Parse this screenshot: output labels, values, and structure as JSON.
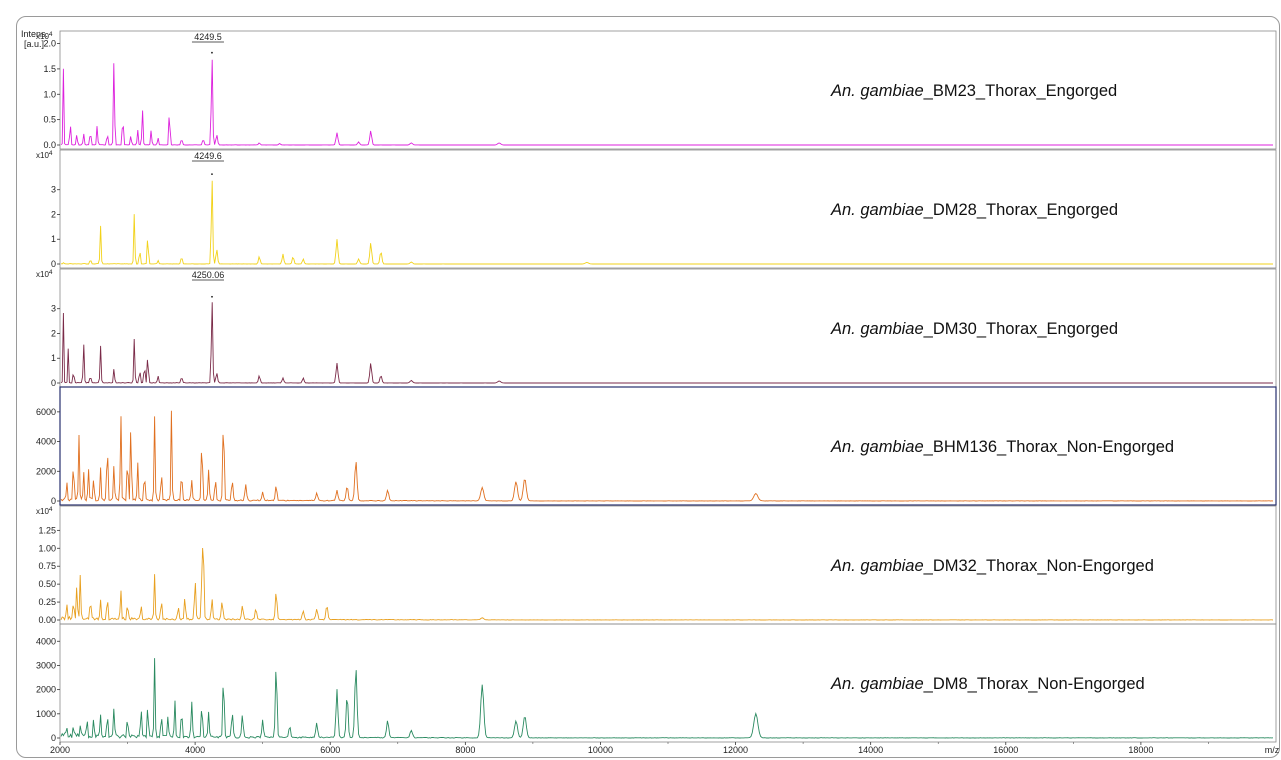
{
  "chart_data": {
    "type": "line",
    "y_axis_title": [
      "Intens.",
      "[a.u.]"
    ],
    "x_axis": {
      "unit": "m/z",
      "range": [
        2000,
        20000
      ],
      "ticks": [
        "2000",
        "4000",
        "6000",
        "8000",
        "10000",
        "12000",
        "14000",
        "16000",
        "18000"
      ]
    },
    "panels": [
      {
        "label_italic": "An. gambiae",
        "label_rest": "_BM23_Thorax_Engorged",
        "color": "#dd22dd",
        "multiplier": "x10",
        "multiplier_exp": "4",
        "ylim": [
          0,
          2.05
        ],
        "y_ticks": [
          "0.0",
          "0.5",
          "1.0",
          "1.5",
          "2.0"
        ],
        "peak_label": "4249.5",
        "peak_mz": 4249.5,
        "noise": 0.01,
        "peaks": [
          [
            2050,
            1.5,
            6
          ],
          [
            2150,
            0.7,
            6
          ],
          [
            2250,
            0.22,
            8
          ],
          [
            2350,
            0.22,
            8
          ],
          [
            2450,
            0.3,
            8
          ],
          [
            2550,
            0.38,
            8
          ],
          [
            2700,
            0.25,
            8
          ],
          [
            2800,
            1.78,
            8
          ],
          [
            2930,
            0.62,
            8
          ],
          [
            3050,
            0.2,
            8
          ],
          [
            3150,
            0.3,
            8
          ],
          [
            3220,
            0.72,
            8
          ],
          [
            3350,
            0.3,
            8
          ],
          [
            3450,
            0.15,
            8
          ],
          [
            3620,
            0.75,
            8
          ],
          [
            3800,
            0.12,
            10
          ],
          [
            4120,
            0.12,
            10
          ],
          [
            4249.5,
            1.78,
            10
          ],
          [
            4320,
            0.2,
            12
          ],
          [
            4950,
            0.04,
            12
          ],
          [
            5250,
            0.03,
            12
          ],
          [
            6100,
            0.24,
            14
          ],
          [
            6420,
            0.06,
            14
          ],
          [
            6600,
            0.28,
            14
          ],
          [
            7200,
            0.04,
            18
          ],
          [
            8500,
            0.04,
            22
          ]
        ]
      },
      {
        "label_italic": "An. gambiae",
        "label_rest": "_DM28_Thorax_Engorged",
        "color": "#f2d21a",
        "multiplier": "x10",
        "multiplier_exp": "4",
        "ylim": [
          0,
          4.2
        ],
        "y_ticks": [
          "0",
          "1",
          "2",
          "3"
        ],
        "peak_label": "4249.6",
        "peak_mz": 4249.6,
        "noise": 0.02,
        "peaks": [
          [
            2050,
            0.05,
            6
          ],
          [
            2450,
            0.2,
            8
          ],
          [
            2600,
            1.55,
            8
          ],
          [
            3100,
            2.05,
            8
          ],
          [
            3180,
            0.65,
            8
          ],
          [
            3300,
            1.28,
            8
          ],
          [
            3450,
            0.15,
            8
          ],
          [
            3800,
            0.3,
            10
          ],
          [
            4249.6,
            3.55,
            10
          ],
          [
            4320,
            0.6,
            12
          ],
          [
            4950,
            0.3,
            12
          ],
          [
            5300,
            0.4,
            12
          ],
          [
            5450,
            0.3,
            12
          ],
          [
            5600,
            0.2,
            12
          ],
          [
            6100,
            1.0,
            14
          ],
          [
            6420,
            0.2,
            14
          ],
          [
            6600,
            0.85,
            14
          ],
          [
            6750,
            0.5,
            14
          ],
          [
            7200,
            0.08,
            18
          ],
          [
            9800,
            0.06,
            25
          ]
        ]
      },
      {
        "label_italic": "An. gambiae",
        "label_rest": "_DM30_Thorax_Engorged",
        "color": "#7a2a48",
        "multiplier": "x10",
        "multiplier_exp": "4",
        "ylim": [
          0,
          4.2
        ],
        "y_ticks": [
          "0",
          "1",
          "2",
          "3"
        ],
        "peak_label": "4250.06",
        "peak_mz": 4250.06,
        "noise": 0.03,
        "peaks": [
          [
            2050,
            2.8,
            6
          ],
          [
            2120,
            1.4,
            6
          ],
          [
            2200,
            0.5,
            8
          ],
          [
            2350,
            1.6,
            8
          ],
          [
            2450,
            0.3,
            8
          ],
          [
            2600,
            1.5,
            8
          ],
          [
            2800,
            0.6,
            8
          ],
          [
            3100,
            1.8,
            8
          ],
          [
            3180,
            0.6,
            8
          ],
          [
            3250,
            0.8,
            8
          ],
          [
            3300,
            1.25,
            8
          ],
          [
            3450,
            0.3,
            8
          ],
          [
            3800,
            0.25,
            10
          ],
          [
            4250.06,
            3.4,
            10
          ],
          [
            4320,
            0.4,
            12
          ],
          [
            4950,
            0.3,
            12
          ],
          [
            5300,
            0.2,
            12
          ],
          [
            5600,
            0.2,
            12
          ],
          [
            6100,
            0.8,
            14
          ],
          [
            6600,
            0.8,
            14
          ],
          [
            6750,
            0.3,
            14
          ],
          [
            7200,
            0.1,
            18
          ],
          [
            8500,
            0.08,
            22
          ]
        ]
      },
      {
        "label_italic": "An. gambiae",
        "label_rest": "_BHM136_Thorax_Non-Engorged",
        "color": "#e07020",
        "multiplier": "",
        "multiplier_exp": "",
        "ylim": [
          0,
          7000
        ],
        "y_ticks": [
          "0",
          "2000",
          "4000",
          "6000"
        ],
        "peak_label": "",
        "peak_mz": null,
        "noise": 250,
        "peaks": [
          [
            2100,
            1200,
            8
          ],
          [
            2200,
            2800,
            8
          ],
          [
            2280,
            4400,
            8
          ],
          [
            2350,
            1900,
            8
          ],
          [
            2420,
            2100,
            8
          ],
          [
            2500,
            1600,
            8
          ],
          [
            2600,
            2200,
            8
          ],
          [
            2700,
            4500,
            8
          ],
          [
            2800,
            2400,
            8
          ],
          [
            2900,
            6000,
            8
          ],
          [
            3000,
            3200,
            8
          ],
          [
            3050,
            5500,
            8
          ],
          [
            3150,
            2500,
            8
          ],
          [
            3250,
            2000,
            8
          ],
          [
            3400,
            5600,
            8
          ],
          [
            3500,
            2200,
            8
          ],
          [
            3650,
            6000,
            8
          ],
          [
            3800,
            1800,
            10
          ],
          [
            3950,
            1300,
            10
          ],
          [
            4100,
            4000,
            10
          ],
          [
            4200,
            2000,
            10
          ],
          [
            4300,
            1500,
            10
          ],
          [
            4420,
            5700,
            10
          ],
          [
            4550,
            1300,
            12
          ],
          [
            4750,
            1100,
            12
          ],
          [
            5000,
            600,
            12
          ],
          [
            5200,
            1000,
            12
          ],
          [
            5800,
            500,
            14
          ],
          [
            6100,
            700,
            14
          ],
          [
            6250,
            1000,
            14
          ],
          [
            6380,
            2700,
            16
          ],
          [
            6850,
            700,
            16
          ],
          [
            8250,
            900,
            22
          ],
          [
            8750,
            1300,
            22
          ],
          [
            8880,
            1500,
            22
          ],
          [
            12300,
            500,
            30
          ]
        ]
      },
      {
        "label_italic": "An. gambiae",
        "label_rest": "_DM32_Thorax_Non-Engorged",
        "color": "#e8a020",
        "multiplier": "x10",
        "multiplier_exp": "4",
        "ylim": [
          0,
          1.45
        ],
        "y_ticks": [
          "0.00",
          "0.25",
          "0.50",
          "0.75",
          "1.00",
          "1.25"
        ],
        "peak_label": "",
        "peak_mz": null,
        "noise": 0.05,
        "peaks": [
          [
            2100,
            0.2,
            8
          ],
          [
            2200,
            0.3,
            8
          ],
          [
            2250,
            0.5,
            8
          ],
          [
            2300,
            0.6,
            8
          ],
          [
            2450,
            0.3,
            8
          ],
          [
            2600,
            0.25,
            8
          ],
          [
            2700,
            0.35,
            8
          ],
          [
            2900,
            0.42,
            8
          ],
          [
            3000,
            0.25,
            8
          ],
          [
            3200,
            0.2,
            8
          ],
          [
            3400,
            0.62,
            8
          ],
          [
            3500,
            0.3,
            8
          ],
          [
            3750,
            0.2,
            8
          ],
          [
            3850,
            0.35,
            8
          ],
          [
            4000,
            0.55,
            10
          ],
          [
            4100,
            0.5,
            10
          ],
          [
            4120,
            1.08,
            10
          ],
          [
            4250,
            0.3,
            10
          ],
          [
            4400,
            0.25,
            12
          ],
          [
            4700,
            0.2,
            12
          ],
          [
            4900,
            0.15,
            12
          ],
          [
            5200,
            0.4,
            12
          ],
          [
            5600,
            0.12,
            14
          ],
          [
            5800,
            0.15,
            14
          ],
          [
            5950,
            0.2,
            14
          ],
          [
            8250,
            0.03,
            22
          ]
        ]
      },
      {
        "label_italic": "An. gambiae",
        "label_rest": "_DM8_Thorax_Non-Engorged",
        "color": "#2a8a60",
        "multiplier": "",
        "multiplier_exp": "",
        "ylim": [
          0,
          4300
        ],
        "y_ticks": [
          "0",
          "1000",
          "2000",
          "3000",
          "4000"
        ],
        "peak_label": "",
        "peak_mz": null,
        "noise": 200,
        "peaks": [
          [
            2100,
            300,
            8
          ],
          [
            2200,
            400,
            8
          ],
          [
            2300,
            500,
            8
          ],
          [
            2400,
            700,
            8
          ],
          [
            2500,
            800,
            8
          ],
          [
            2600,
            900,
            8
          ],
          [
            2700,
            1000,
            8
          ],
          [
            2800,
            1200,
            8
          ],
          [
            3000,
            900,
            8
          ],
          [
            3200,
            1300,
            8
          ],
          [
            3300,
            1500,
            8
          ],
          [
            3400,
            3300,
            8
          ],
          [
            3500,
            1100,
            8
          ],
          [
            3600,
            900,
            8
          ],
          [
            3700,
            1500,
            8
          ],
          [
            3800,
            1300,
            8
          ],
          [
            3950,
            1500,
            10
          ],
          [
            4100,
            1300,
            10
          ],
          [
            4200,
            1000,
            10
          ],
          [
            4420,
            2600,
            10
          ],
          [
            4550,
            1000,
            12
          ],
          [
            4700,
            900,
            12
          ],
          [
            5000,
            700,
            12
          ],
          [
            5200,
            3000,
            12
          ],
          [
            5400,
            500,
            12
          ],
          [
            5800,
            600,
            14
          ],
          [
            6100,
            2000,
            14
          ],
          [
            6250,
            1800,
            14
          ],
          [
            6380,
            2900,
            16
          ],
          [
            6850,
            700,
            16
          ],
          [
            7200,
            300,
            18
          ],
          [
            8250,
            2200,
            22
          ],
          [
            8750,
            700,
            22
          ],
          [
            8880,
            900,
            22
          ],
          [
            12300,
            1000,
            30
          ]
        ]
      }
    ]
  }
}
